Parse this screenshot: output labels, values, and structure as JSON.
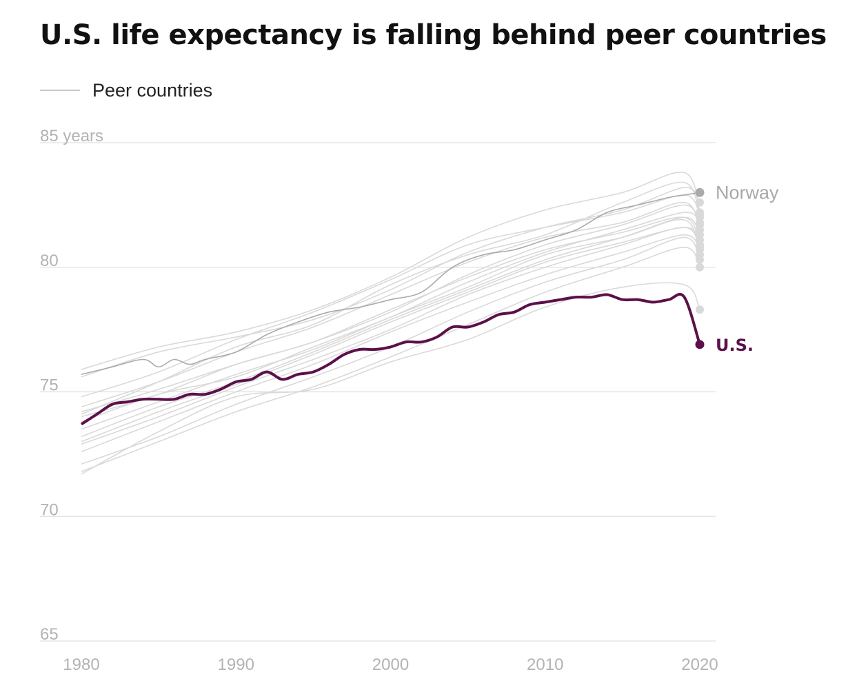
{
  "chart_data": {
    "type": "line",
    "title": "U.S. life expectancy is falling behind peer countries",
    "legend": {
      "label": "Peer countries",
      "placement": "top-left"
    },
    "x_ticks": [
      "1980",
      "1990",
      "2000",
      "2010",
      "2020"
    ],
    "y_ticks": [
      "65",
      "70",
      "75",
      "80",
      "85 years"
    ],
    "y_tick_values": [
      65,
      70,
      75,
      80,
      85
    ],
    "xlim": [
      1980,
      2021
    ],
    "ylim": [
      65,
      85
    ],
    "grid": true,
    "colors": {
      "us": "#5c1049",
      "norway": "#aaaaaa",
      "peer": "#d9d9d9",
      "grid": "#e0e0e0",
      "tick": "#b3b3b3"
    },
    "series": [
      {
        "name": "U.S.",
        "highlight": true,
        "x": [
          1980,
          1981,
          1982,
          1983,
          1984,
          1985,
          1986,
          1987,
          1988,
          1989,
          1990,
          1991,
          1992,
          1993,
          1994,
          1995,
          1996,
          1997,
          1998,
          1999,
          2000,
          2001,
          2002,
          2003,
          2004,
          2005,
          2006,
          2007,
          2008,
          2009,
          2010,
          2011,
          2012,
          2013,
          2014,
          2015,
          2016,
          2017,
          2018,
          2019,
          2020
        ],
        "y": [
          73.7,
          74.1,
          74.5,
          74.6,
          74.7,
          74.7,
          74.7,
          74.9,
          74.9,
          75.1,
          75.4,
          75.5,
          75.8,
          75.5,
          75.7,
          75.8,
          76.1,
          76.5,
          76.7,
          76.7,
          76.8,
          77.0,
          77.0,
          77.2,
          77.6,
          77.6,
          77.8,
          78.1,
          78.2,
          78.5,
          78.6,
          78.7,
          78.8,
          78.8,
          78.9,
          78.7,
          78.7,
          78.6,
          78.7,
          78.8,
          76.9
        ]
      },
      {
        "name": "Norway",
        "highlight": true,
        "x": [
          1980,
          1982,
          1984,
          1985,
          1986,
          1987,
          1988,
          1990,
          1992,
          1994,
          1996,
          1998,
          2000,
          2002,
          2004,
          2006,
          2008,
          2010,
          2012,
          2014,
          2016,
          2018,
          2019,
          2020
        ],
        "y": [
          75.7,
          76.0,
          76.3,
          76.0,
          76.3,
          76.1,
          76.3,
          76.6,
          77.3,
          77.8,
          78.2,
          78.4,
          78.7,
          79.0,
          80.0,
          80.5,
          80.7,
          81.1,
          81.5,
          82.2,
          82.5,
          82.8,
          82.9,
          83.0
        ]
      },
      {
        "x": [
          1980,
          1985,
          1990,
          1995,
          2000,
          2005,
          2010,
          2015,
          2019,
          2020
        ],
        "y": [
          75.6,
          76.6,
          77.2,
          77.9,
          79.1,
          80.6,
          81.6,
          82.3,
          83.2,
          82.6
        ]
      },
      {
        "x": [
          1980,
          1985,
          1990,
          1995,
          2000,
          2005,
          2010,
          2015,
          2019,
          2020
        ],
        "y": [
          75.9,
          76.8,
          77.4,
          78.3,
          79.6,
          81.2,
          82.3,
          83.0,
          83.8,
          82.2
        ]
      },
      {
        "x": [
          1980,
          1985,
          1990,
          1995,
          2000,
          2005,
          2010,
          2015,
          2019,
          2020
        ],
        "y": [
          74.1,
          75.4,
          76.8,
          77.7,
          79.3,
          80.5,
          81.3,
          82.6,
          83.4,
          82.0
        ]
      },
      {
        "x": [
          1980,
          1985,
          1990,
          1995,
          2000,
          2005,
          2010,
          2015,
          2019,
          2020
        ],
        "y": [
          74.8,
          75.8,
          77.1,
          78.2,
          79.5,
          80.9,
          81.6,
          82.2,
          82.9,
          82.1
        ]
      },
      {
        "x": [
          1980,
          1985,
          1990,
          1995,
          2000,
          2005,
          2010,
          2015,
          2019,
          2020
        ],
        "y": [
          74.4,
          75.4,
          76.6,
          77.6,
          78.9,
          80.2,
          81.2,
          81.8,
          82.6,
          81.5
        ]
      },
      {
        "x": [
          1980,
          1985,
          1990,
          1995,
          2000,
          2005,
          2010,
          2015,
          2019,
          2020
        ],
        "y": [
          74.0,
          74.9,
          76.1,
          77.0,
          78.3,
          79.6,
          80.7,
          81.4,
          82.0,
          80.9
        ]
      },
      {
        "x": [
          1980,
          1985,
          1990,
          1995,
          2000,
          2005,
          2010,
          2015,
          2019,
          2020
        ],
        "y": [
          73.5,
          74.6,
          75.7,
          76.7,
          78.0,
          79.2,
          80.5,
          81.2,
          81.9,
          80.5
        ]
      },
      {
        "x": [
          1980,
          1985,
          1990,
          1995,
          2000,
          2005,
          2010,
          2015,
          2019,
          2020
        ],
        "y": [
          73.0,
          74.2,
          75.3,
          76.5,
          77.8,
          79.0,
          80.2,
          81.0,
          81.6,
          81.1
        ]
      },
      {
        "x": [
          1980,
          1985,
          1990,
          1995,
          2000,
          2005,
          2010,
          2015,
          2019,
          2020
        ],
        "y": [
          72.6,
          73.8,
          75.0,
          76.1,
          77.4,
          78.6,
          79.7,
          80.6,
          81.3,
          80.7
        ]
      },
      {
        "x": [
          1980,
          1985,
          1990,
          1995,
          2000,
          2005,
          2010,
          2015,
          2019,
          2020
        ],
        "y": [
          72.1,
          73.2,
          74.5,
          75.6,
          76.8,
          78.2,
          79.4,
          80.3,
          81.2,
          80.3
        ]
      },
      {
        "x": [
          1980,
          1985,
          1990,
          1995,
          2000,
          2005,
          2010,
          2015,
          2019,
          2020
        ],
        "y": [
          71.8,
          73.0,
          74.2,
          75.2,
          76.4,
          77.7,
          79.0,
          80.0,
          80.8,
          80.0
        ]
      },
      {
        "x": [
          1980,
          1985,
          1990,
          1995,
          2000,
          2005,
          2010,
          2015,
          2019,
          2020
        ],
        "y": [
          71.7,
          73.4,
          74.8,
          75.1,
          76.2,
          77.1,
          78.4,
          79.2,
          79.3,
          78.3
        ]
      },
      {
        "x": [
          1980,
          1985,
          1990,
          1995,
          2000,
          2005,
          2010,
          2015,
          2019,
          2020
        ],
        "y": [
          73.8,
          74.9,
          75.6,
          76.8,
          78.0,
          79.4,
          80.6,
          81.5,
          82.2,
          81.8
        ]
      },
      {
        "x": [
          1980,
          1985,
          1990,
          1995,
          2000,
          2005,
          2010,
          2015,
          2019,
          2020
        ],
        "y": [
          74.2,
          75.1,
          76.1,
          77.0,
          78.2,
          79.7,
          80.9,
          81.7,
          82.5,
          81.7
        ]
      },
      {
        "x": [
          1980,
          1985,
          1990,
          1995,
          2000,
          2005,
          2010,
          2015,
          2019,
          2020
        ],
        "y": [
          73.2,
          74.4,
          75.4,
          76.6,
          77.9,
          79.1,
          80.3,
          81.2,
          82.0,
          81.3
        ]
      },
      {
        "x": [
          1980,
          1985,
          1990,
          1995,
          2000,
          2005,
          2010,
          2015,
          2019,
          2020
        ],
        "y": [
          72.9,
          74.0,
          75.2,
          76.3,
          77.5,
          78.9,
          80.0,
          80.9,
          81.6,
          80.8
        ]
      }
    ]
  }
}
